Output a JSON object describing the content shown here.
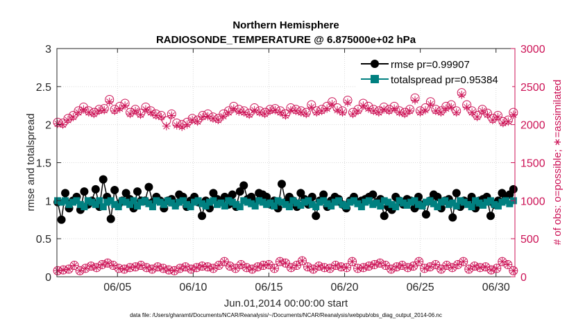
{
  "chart_data": {
    "type": "scatter",
    "title": "Northern Hemisphere",
    "subtitle": "RADIOSONDE_TEMPERATURE @ 6.875000e+02 hPa",
    "xlabel": "Jun.01,2014 00:00:00 start",
    "ylabel_left": "rmse and totalspread",
    "ylabel_right": "# of obs: o=possible; ∗=assimilated",
    "footer": "data file: /Users/gharamti/Documents/NCAR/Reanalysis/~/Documents/NCAR/Reanalysis/webpub/obs_diag_output_2014-06.nc",
    "xlim": [
      1.0,
      31.25
    ],
    "ylim_left": [
      0,
      3
    ],
    "ylim_right": [
      0,
      3000
    ],
    "x_ticks": [
      5,
      10,
      15,
      20,
      25,
      30
    ],
    "x_tick_labels": [
      "06/05",
      "06/10",
      "06/15",
      "06/20",
      "06/25",
      "06/30"
    ],
    "y_left_ticks": [
      0,
      0.5,
      1,
      1.5,
      2,
      2.5,
      3
    ],
    "y_left_tick_labels": [
      "0",
      "0.5",
      "1",
      "1.5",
      "2",
      "2.5",
      "3"
    ],
    "y_right_ticks": [
      0,
      500,
      1000,
      1500,
      2000,
      2500,
      3000
    ],
    "y_right_tick_labels": [
      "0",
      "500",
      "1000",
      "1500",
      "2000",
      "2500",
      "3000"
    ],
    "legend": [
      {
        "name": "rmse pr=0.99907",
        "color": "#000000"
      },
      {
        "name": "totalspread pr=0.95384",
        "color": "#008080"
      }
    ],
    "series": [
      {
        "name": "rmse",
        "axis": "left",
        "color": "#000000",
        "values": [
          0.98,
          0.75,
          1.1,
          0.9,
          1.0,
          1.05,
          0.88,
          1.12,
          0.95,
          1.0,
          1.15,
          0.92,
          1.28,
          1.05,
          0.76,
          1.14,
          0.95,
          1.0,
          1.1,
          1.02,
          0.9,
          1.12,
          1.0,
          1.0,
          1.18,
          0.98,
          1.05,
          1.0,
          0.9,
          1.0,
          1.02,
          0.95,
          1.08,
          1.05,
          0.92,
          1.0,
          1.05,
          0.98,
          0.8,
          1.0,
          0.9,
          1.1,
          1.02,
          1.0,
          1.05,
          0.95,
          1.08,
          0.92,
          1.12,
          1.2,
          1.02,
          1.05,
          0.98,
          1.1,
          1.08,
          1.05,
          0.95,
          1.0,
          0.9,
          1.22,
          0.98,
          1.05,
          1.0,
          0.92,
          1.1,
          1.02,
          0.95,
          1.05,
          0.8,
          1.0,
          1.08,
          0.92,
          1.0,
          1.05,
          1.02,
          0.95,
          0.9,
          1.0,
          1.05,
          0.98,
          1.0,
          1.02,
          1.05,
          1.08,
          0.98,
          1.02,
          0.8,
          0.92,
          0.88,
          1.05,
          1.0,
          0.95,
          1.02,
          1.0,
          0.9,
          1.05,
          0.95,
          0.82,
          1.0,
          1.08,
          1.05,
          0.9,
          1.0,
          1.02,
          0.78,
          1.1,
          0.92,
          1.0,
          0.98,
          1.05,
          0.9,
          1.0,
          1.02,
          1.05,
          0.8,
          0.95,
          1.0,
          1.1,
          1.05,
          1.08,
          1.15
        ]
      },
      {
        "name": "totalspread",
        "axis": "left",
        "color": "#008080",
        "values": [
          1.0,
          0.98,
          1.0,
          0.95,
          0.98,
          1.0,
          0.95,
          0.92,
          1.0,
          0.98,
          0.95,
          1.0,
          0.92,
          0.98,
          1.0,
          0.95,
          0.92,
          1.0,
          0.98,
          0.95,
          1.0,
          0.93,
          0.98,
          1.0,
          0.96,
          0.92,
          1.0,
          0.98,
          0.95,
          1.0,
          0.97,
          0.93,
          0.98,
          1.0,
          0.95,
          0.92,
          0.98,
          1.0,
          0.96,
          0.93,
          0.98,
          1.0,
          0.95,
          0.97,
          0.93,
          1.0,
          0.98,
          0.95,
          0.92,
          1.0,
          0.98,
          0.96,
          0.93,
          1.0,
          0.98,
          0.95,
          0.97,
          0.93,
          1.0,
          0.98,
          0.95,
          0.92,
          1.0,
          0.97,
          0.94,
          0.98,
          1.0,
          0.95,
          0.92,
          0.98,
          1.0,
          0.96,
          0.93,
          0.98,
          1.0,
          0.95,
          0.93,
          0.98,
          1.0,
          0.96,
          0.92,
          0.98,
          1.0,
          0.95,
          0.97,
          0.93,
          1.0,
          0.98,
          0.95,
          0.92,
          1.0,
          0.97,
          0.94,
          0.98,
          1.0,
          0.95,
          0.93,
          0.98,
          1.0,
          0.96,
          0.92,
          0.98,
          1.0,
          0.95,
          0.97,
          0.93,
          1.0,
          0.98,
          0.95,
          0.92,
          1.0,
          0.97,
          0.94,
          0.98,
          1.0,
          0.95,
          0.93,
          0.98,
          1.0,
          0.96,
          1.0
        ]
      },
      {
        "name": "obs possible (upper)",
        "axis": "right",
        "marker": "circle",
        "color": "#cc1155",
        "values": [
          2030,
          2020,
          2080,
          2120,
          2180,
          2230,
          2180,
          2160,
          2200,
          2210,
          2330,
          2200,
          2240,
          2280,
          2160,
          2200,
          2150,
          2230,
          2180,
          2140,
          2120,
          2050,
          2140,
          2020,
          2000,
          2030,
          2080,
          2060,
          2120,
          2140,
          2100,
          2080,
          2140,
          2180,
          2240,
          2200,
          2180,
          2150,
          2220,
          2180,
          2160,
          2200,
          2210,
          2180,
          2140,
          2220,
          2200,
          2180,
          2160,
          2260,
          2180,
          2200,
          2240,
          2300,
          2220,
          2180,
          2320,
          2160,
          2200,
          2280,
          2240,
          2200,
          2180,
          2230,
          2200,
          2240,
          2180,
          2160,
          2200,
          2350,
          2180,
          2220,
          2300,
          2200,
          2180,
          2240,
          2260,
          2180,
          2420,
          2260,
          2180,
          2120,
          2200,
          2150,
          2080,
          2120,
          2040,
          2060,
          2160
        ]
      },
      {
        "name": "obs assimilated (upper)",
        "axis": "right",
        "marker": "asterisk",
        "color": "#cc1155",
        "values": [
          2010,
          2000,
          2060,
          2100,
          2160,
          2200,
          2160,
          2140,
          2180,
          2190,
          2300,
          2180,
          2210,
          2250,
          2140,
          2180,
          2130,
          2200,
          2160,
          2120,
          2100,
          1980,
          2120,
          1990,
          1970,
          2000,
          2060,
          2040,
          2100,
          2110,
          2080,
          2060,
          2110,
          2160,
          2210,
          2170,
          2160,
          2130,
          2190,
          2160,
          2140,
          2180,
          2190,
          2160,
          2120,
          2190,
          2180,
          2160,
          2140,
          2230,
          2160,
          2180,
          2210,
          2270,
          2190,
          2160,
          2290,
          2140,
          2180,
          2250,
          2210,
          2180,
          2160,
          2200,
          2180,
          2210,
          2160,
          2140,
          2180,
          2320,
          2160,
          2190,
          2270,
          2180,
          2160,
          2210,
          2230,
          2160,
          2390,
          2230,
          2160,
          2100,
          2180,
          2130,
          2060,
          2100,
          2020,
          2040,
          2130
        ]
      },
      {
        "name": "obs possible (lower)",
        "axis": "right",
        "marker": "circle",
        "color": "#cc1155",
        "values": [
          80,
          90,
          100,
          150,
          80,
          110,
          140,
          120,
          160,
          180,
          150,
          110,
          100,
          120,
          130,
          150,
          120,
          100,
          130,
          110,
          90,
          80,
          110,
          130,
          100,
          120,
          140,
          130,
          110,
          150,
          200,
          140,
          110,
          160,
          120,
          100,
          130,
          150,
          160,
          110,
          200,
          180,
          120,
          150,
          210,
          130,
          100,
          140,
          120,
          110,
          150,
          130,
          120,
          200,
          110,
          120,
          140,
          160,
          180,
          150,
          100,
          130,
          150,
          120,
          140,
          200,
          110,
          130,
          160,
          100,
          150,
          120,
          160,
          200,
          100,
          140,
          120,
          130,
          90,
          110,
          200,
          160,
          80
        ]
      },
      {
        "name": "obs assimilated (lower)",
        "axis": "right",
        "marker": "asterisk",
        "color": "#cc1155",
        "values": [
          80,
          90,
          100,
          150,
          80,
          110,
          140,
          120,
          160,
          180,
          150,
          110,
          100,
          120,
          130,
          150,
          120,
          100,
          130,
          110,
          90,
          80,
          110,
          130,
          100,
          120,
          140,
          130,
          110,
          150,
          200,
          140,
          110,
          160,
          120,
          100,
          130,
          150,
          160,
          110,
          200,
          180,
          120,
          150,
          210,
          130,
          100,
          140,
          120,
          110,
          150,
          130,
          120,
          200,
          110,
          120,
          140,
          160,
          180,
          150,
          100,
          130,
          150,
          120,
          140,
          200,
          110,
          130,
          160,
          100,
          150,
          120,
          160,
          200,
          100,
          140,
          120,
          130,
          90,
          110,
          200,
          160,
          80
        ]
      }
    ]
  }
}
